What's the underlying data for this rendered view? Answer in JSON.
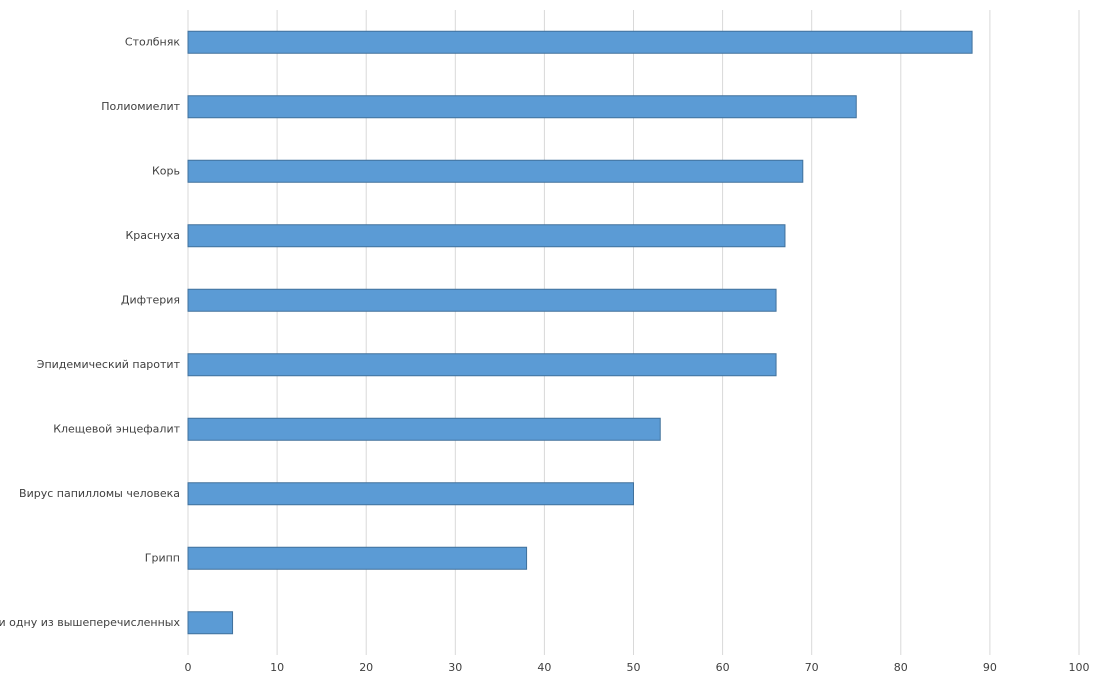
{
  "chart_data": {
    "type": "bar",
    "orientation": "horizontal",
    "categories": [
      "Столбняк",
      "Полиомиелит",
      "Корь",
      "Краснуха",
      "Дифтерия",
      "Эпидемический паротит",
      "Клещевой энцефалит",
      "Вирус папилломы человека",
      "Грипп",
      "Ни одну из вышеперечисленных"
    ],
    "values": [
      88,
      75,
      69,
      67,
      66,
      66,
      53,
      50,
      38,
      5
    ],
    "color": "#5b9bd5",
    "xlim": [
      0,
      100
    ],
    "xticks": [
      0,
      10,
      20,
      30,
      40,
      50,
      60,
      70,
      80,
      90,
      100
    ],
    "grid": true
  }
}
